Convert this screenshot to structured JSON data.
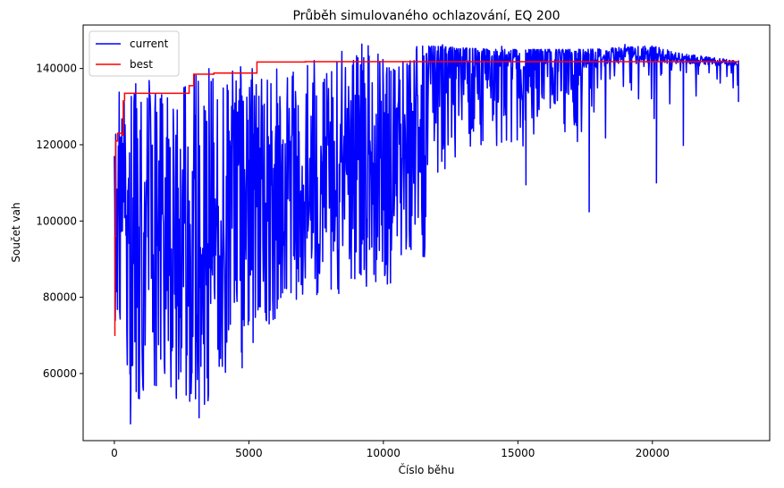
{
  "chart_data": {
    "type": "line",
    "title": "Průběh simulovaného ochlazování, EQ 200",
    "xlabel": "Číslo běhu",
    "ylabel": "Součet vah",
    "xlim": [
      -1160,
      24360
    ],
    "ylim": [
      42400,
      151400
    ],
    "x_ticks": [
      0,
      5000,
      10000,
      15000,
      20000
    ],
    "x_tick_labels": [
      "0",
      "5000",
      "10000",
      "15000",
      "20000"
    ],
    "y_ticks": [
      60000,
      80000,
      100000,
      120000,
      140000
    ],
    "y_tick_labels": [
      "60000",
      "80000",
      "100000",
      "120000",
      "140000"
    ],
    "grid": false,
    "legend": {
      "position": "top-left",
      "entries": [
        "current",
        "best"
      ]
    },
    "series": [
      {
        "name": "current",
        "color": "#0000ff",
        "x_start": 0,
        "x_end": 23200,
        "sample_count": 1400,
        "seed": 20240517,
        "envelope": [
          [
            0,
            46800,
            134000
          ],
          [
            300,
            53000,
            131000
          ],
          [
            800,
            52000,
            138000
          ],
          [
            2000,
            54500,
            139000
          ],
          [
            3100,
            48500,
            140000
          ],
          [
            4500,
            61500,
            141000
          ],
          [
            5500,
            71000,
            141500
          ],
          [
            7000,
            80000,
            142000
          ],
          [
            9500,
            81000,
            146500
          ],
          [
            11500,
            88000,
            146000
          ],
          [
            14000,
            97000,
            145000
          ],
          [
            17500,
            102500,
            145000
          ],
          [
            20000,
            110000,
            146000
          ],
          [
            21000,
            120000,
            144000
          ],
          [
            23200,
            131000,
            142000
          ]
        ],
        "highlights": [
          [
            40,
            80000
          ],
          [
            180,
            133800
          ],
          [
            600,
            46800
          ],
          [
            900,
            53500
          ],
          [
            2300,
            54600
          ],
          [
            3150,
            48400
          ],
          [
            4750,
            61500
          ],
          [
            9200,
            146400
          ],
          [
            12200,
            146200
          ],
          [
            14400,
            145800
          ],
          [
            15300,
            109500
          ],
          [
            17650,
            102400
          ],
          [
            18980,
            146300
          ],
          [
            20150,
            110000
          ],
          [
            21150,
            119800
          ],
          [
            23200,
            131200
          ]
        ]
      },
      {
        "name": "best",
        "color": "#ff0000",
        "steps": [
          [
            0,
            70000
          ],
          [
            20,
            96000
          ],
          [
            50,
            121000
          ],
          [
            120,
            123000
          ],
          [
            300,
            122500
          ],
          [
            330,
            131500
          ],
          [
            380,
            133500
          ],
          [
            2750,
            133500
          ],
          [
            2780,
            135500
          ],
          [
            2950,
            138500
          ],
          [
            3700,
            138800
          ],
          [
            5300,
            141700
          ],
          [
            7100,
            141800
          ],
          [
            23200,
            141800
          ]
        ]
      }
    ]
  }
}
